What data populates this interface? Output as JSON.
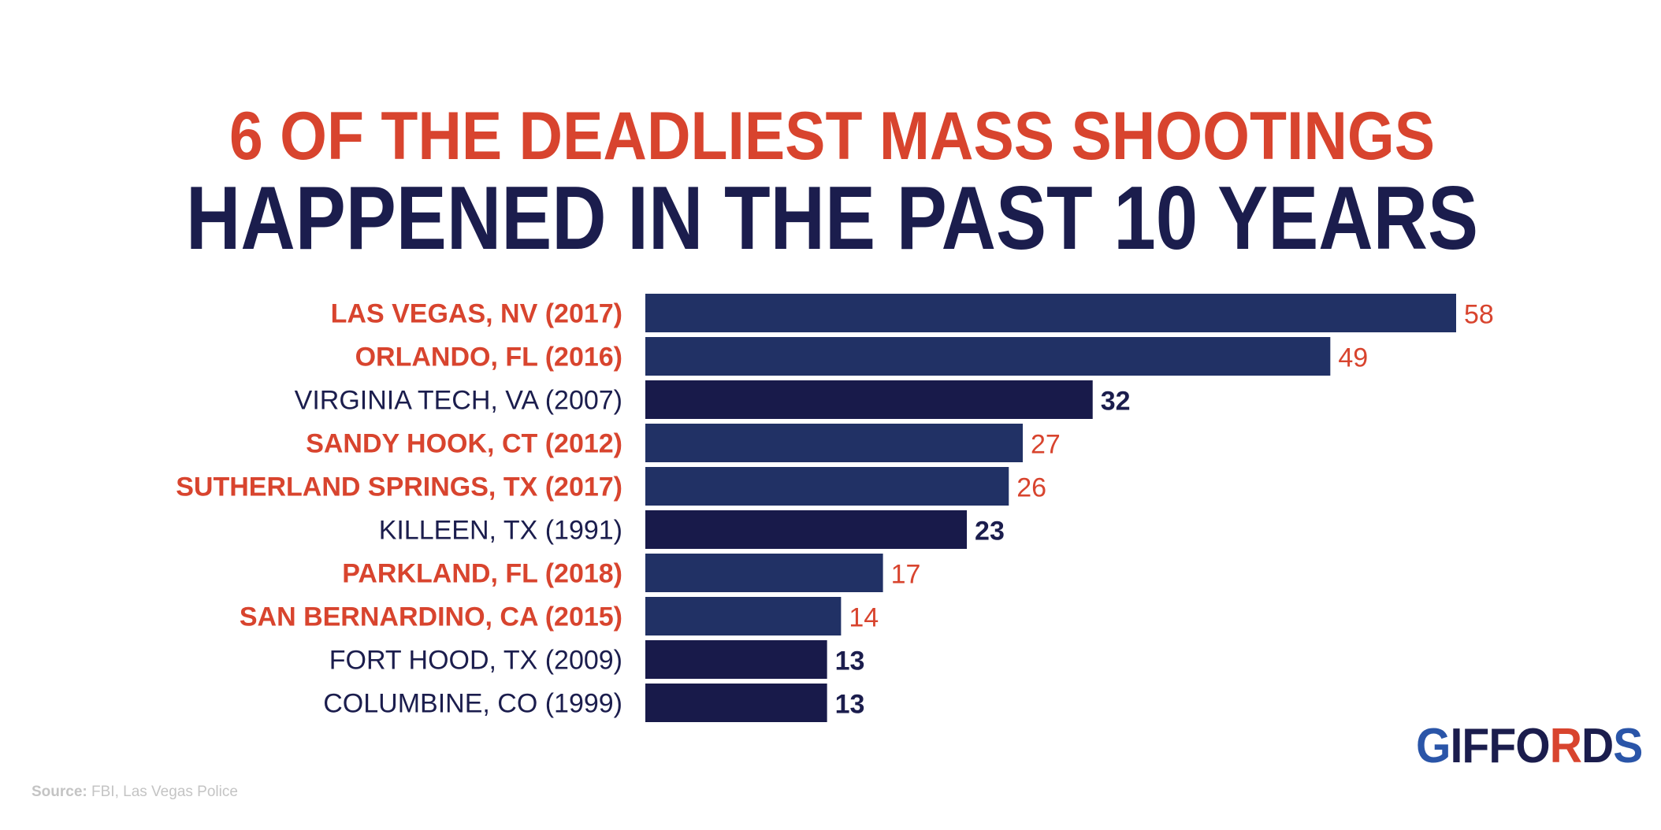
{
  "chart_data": {
    "type": "bar",
    "orientation": "horizontal",
    "title_line1": "6 OF THE DEADLIEST MASS SHOOTINGS",
    "title_line2": "HAPPENED IN THE PAST 10 YEARS",
    "categories": [
      "LAS VEGAS, NV (2017)",
      "ORLANDO, FL (2016)",
      "VIRGINIA TECH, VA (2007)",
      "SANDY HOOK, CT (2012)",
      "SUTHERLAND SPRINGS, TX (2017)",
      "KILLEEN, TX (1991)",
      "PARKLAND, FL (2018)",
      "SAN BERNARDINO, CA (2015)",
      "FORT HOOD, TX (2009)",
      "COLUMBINE, CO (1999)"
    ],
    "values": [
      58,
      49,
      32,
      27,
      26,
      23,
      17,
      14,
      13,
      13
    ],
    "highlighted": [
      true,
      true,
      false,
      true,
      true,
      false,
      true,
      true,
      false,
      false
    ],
    "xlim": [
      0,
      58
    ],
    "grid": false,
    "colors": {
      "accent_red": "#d8442e",
      "navy_text": "#1b1d4d",
      "bar_highlighted": "#213165",
      "bar_default": "#181a4a"
    }
  },
  "source": {
    "label": "Source:",
    "text": " FBI, Las Vegas Police"
  },
  "logo": {
    "text": "GIFFORDS"
  }
}
